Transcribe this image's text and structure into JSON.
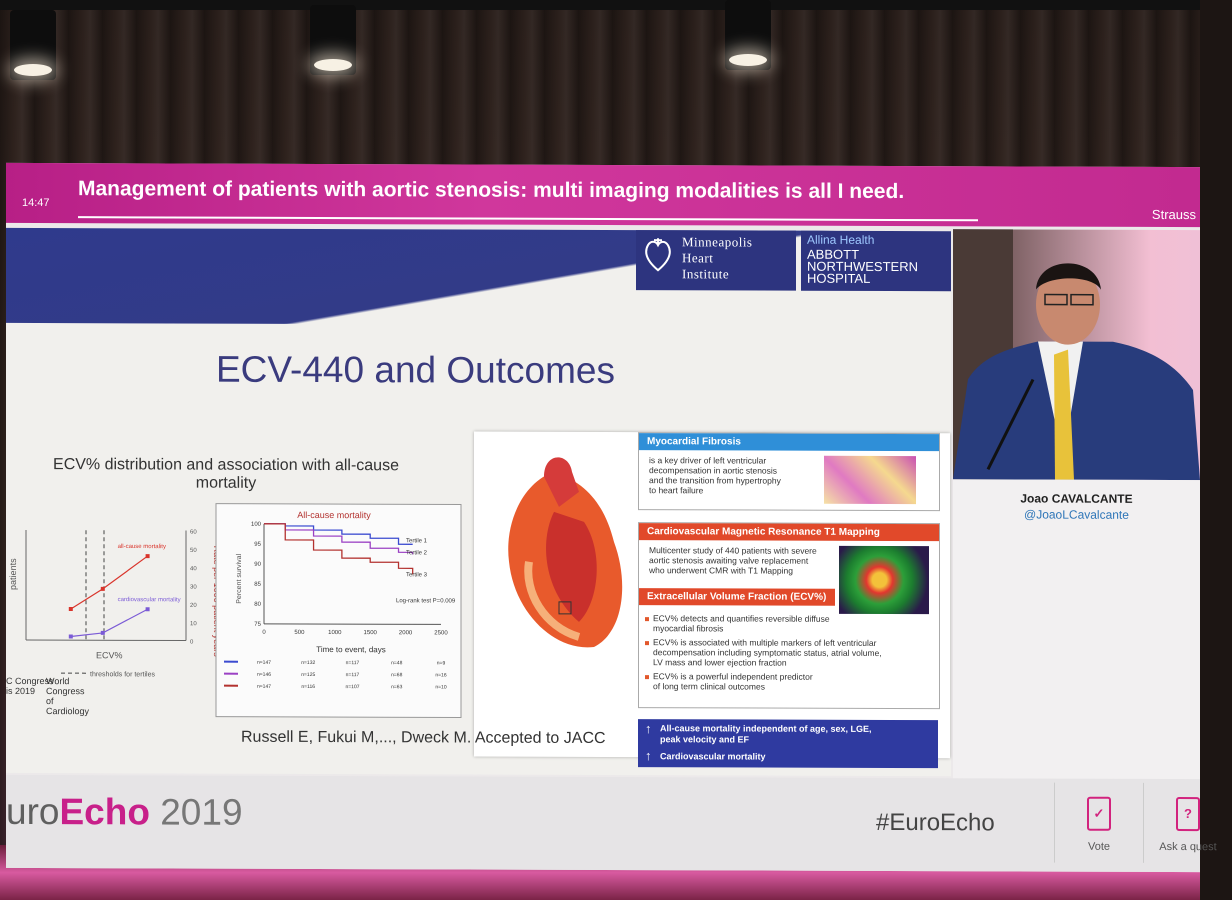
{
  "header": {
    "clock": "14:47",
    "title": "Management of patients with aortic stenosis: multi imaging modalities is all I need.",
    "right_text": "Strauss"
  },
  "logos": {
    "mhi_line1": "Minneapolis",
    "mhi_line2": "Heart",
    "mhi_line3": "Institute",
    "allina": "Allina Health",
    "abbott_line1": "ABBOTT",
    "abbott_line2": "NORTHWESTERN",
    "abbott_line3": "HOSPITAL"
  },
  "slide": {
    "title": "ECV-440 and Outcomes",
    "subtitle_line1": "ECV% distribution and association with all-cause",
    "subtitle_line2": "mortality",
    "citation": "Russell E, Fukui M,..., Dweck M. Accepted to JACC"
  },
  "chart_data": [
    {
      "type": "line",
      "xlabel": "ECV%",
      "ylabel_left": "patients",
      "ylabel_right": "Rate per 1000 patient years",
      "y_right_ticks": [
        "0",
        "10",
        "20",
        "30",
        "40",
        "50",
        "60"
      ],
      "series": [
        {
          "name": "all-cause mortality",
          "x": [
            22,
            27,
            34
          ],
          "values": [
            17,
            28,
            46
          ]
        },
        {
          "name": "cardiovascular mortality",
          "x": [
            22,
            27,
            34
          ],
          "values": [
            2,
            4,
            17
          ]
        }
      ],
      "thresholds_label": "thresholds for tertiles",
      "threshold_x": [
        26,
        29
      ]
    },
    {
      "type": "line",
      "title": "All-cause mortality",
      "xlabel": "Time to event, days",
      "ylabel": "Percent survival",
      "x_ticks": [
        "0",
        "500",
        "1000",
        "1500",
        "2000",
        "2500"
      ],
      "y_ticks": [
        "75",
        "80",
        "85",
        "90",
        "95",
        "100"
      ],
      "xlim": [
        0,
        2500
      ],
      "ylim": [
        75,
        100
      ],
      "series": [
        {
          "name": "Tertile 1",
          "color": "#3b4bd0",
          "x": [
            0,
            300,
            700,
            1100,
            1500,
            1900,
            2100
          ],
          "values": [
            100,
            99.5,
            98.5,
            97.5,
            96.5,
            95,
            95
          ]
        },
        {
          "name": "Tertile 2",
          "color": "#9b41c4",
          "x": [
            0,
            300,
            700,
            1100,
            1500,
            1900,
            2100
          ],
          "values": [
            100,
            98.5,
            97,
            95.5,
            94,
            93,
            92.5
          ]
        },
        {
          "name": "Tertile 3",
          "color": "#b3322f",
          "x": [
            0,
            300,
            700,
            1100,
            1500,
            1900,
            2100
          ],
          "values": [
            100,
            96,
            93.5,
            91.5,
            90.5,
            89,
            87.5
          ]
        }
      ],
      "annotation": "Log-rank test P=0.009",
      "risk_table": [
        [
          "n=147",
          "n=132",
          "n=117",
          "n=48",
          "n=9"
        ],
        [
          "n=146",
          "n=125",
          "n=117",
          "n=68",
          "n=16"
        ],
        [
          "n=147",
          "n=116",
          "n=107",
          "n=63",
          "n=10"
        ]
      ]
    }
  ],
  "congress": {
    "left_line1": "C Congress",
    "left_line2": "is 2019",
    "right_line1": "World Congress",
    "right_line2": "of Cardiology"
  },
  "panel": {
    "fibrosis_head": "Myocardial Fibrosis",
    "fibrosis_text": [
      "is a key driver of left ventricular",
      "decompensation in aortic stenosis",
      "and the transition from hypertrophy",
      "to heart failure"
    ],
    "cmr_head": "Cardiovascular Magnetic Resonance T1 Mapping",
    "cmr_text": [
      "Multicenter study of 440 patients with severe",
      "aortic stenosis awaiting valve replacement",
      "who underwent CMR with T1 Mapping"
    ],
    "ecv_head": "Extracellular Volume Fraction (ECV%)",
    "ecv_b1": [
      "ECV% detects and quantifies reversible diffuse",
      "myocardial fibrosis"
    ],
    "ecv_b2": [
      "ECV% is associated with multiple markers of left ventricular",
      "decompensation including symptomatic status, atrial volume,",
      "LV mass and lower ejection fraction"
    ],
    "ecv_b3": [
      "ECV% is a powerful independent predictor",
      "of long term clinical outcomes"
    ],
    "blue_l1": "All-cause mortality independent of age, sex, LGE,",
    "blue_l2": "peak velocity and EF",
    "blue_l3": "Cardiovascular mortality"
  },
  "speaker": {
    "name": "Joao CAVALCANTE",
    "handle": "@JoaoLCavalcante"
  },
  "footer": {
    "brand_pre": "uro",
    "brand_echo": "Echo",
    "brand_year": "2019",
    "hashtag": "#EuroEcho",
    "vote_label": "Vote",
    "ask_label": "Ask a quest"
  },
  "colors": {
    "header": "#c92b92",
    "slide_title": "#3a3b7e",
    "brand_echo": "#c8208a"
  }
}
